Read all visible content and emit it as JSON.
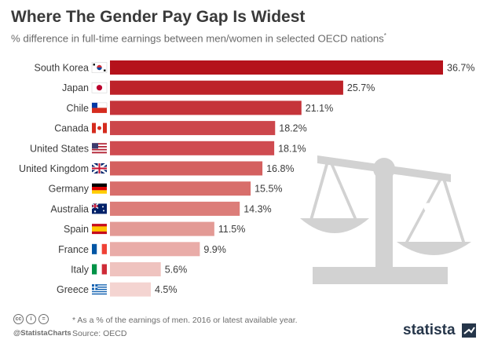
{
  "title": "Where The Gender Pay Gap Is Widest",
  "subtitle": "% difference in full-time earnings between men/women in selected OECD nations",
  "subtitle_mark": "*",
  "footnote": "* As a % of the earnings of men. 2016 or latest available year.",
  "source": "Source: OECD",
  "handle": "@StatistaCharts",
  "brand": "statista",
  "license_icons": [
    "cc-icon",
    "person-icon",
    "equals-icon"
  ],
  "colors": {
    "bars": [
      "#b5121b",
      "#bd2229",
      "#c5343a",
      "#cc464b",
      "#cf4b50",
      "#d4605f",
      "#d86e6b",
      "#dc7d79",
      "#e39a95",
      "#e9aca8",
      "#efc3bf",
      "#f4d4d1"
    ],
    "illustration": "#d2d2d2"
  },
  "chart_data": {
    "type": "bar",
    "orientation": "horizontal",
    "categories": [
      "South Korea",
      "Japan",
      "Chile",
      "Canada",
      "United States",
      "United Kingdom",
      "Germany",
      "Australia",
      "Spain",
      "France",
      "Italy",
      "Greece"
    ],
    "values": [
      36.7,
      25.7,
      21.1,
      18.2,
      18.1,
      16.8,
      15.5,
      14.3,
      11.5,
      9.9,
      5.6,
      4.5
    ],
    "value_labels": [
      "36.7%",
      "25.7%",
      "21.1%",
      "18.2%",
      "18.1%",
      "16.8%",
      "15.5%",
      "14.3%",
      "11.5%",
      "9.9%",
      "5.6%",
      "4.5%"
    ],
    "flag_icons": [
      "flag-south-korea-icon",
      "flag-japan-icon",
      "flag-chile-icon",
      "flag-canada-icon",
      "flag-united-states-icon",
      "flag-united-kingdom-icon",
      "flag-germany-icon",
      "flag-australia-icon",
      "flag-spain-icon",
      "flag-france-icon",
      "flag-italy-icon",
      "flag-greece-icon"
    ],
    "xlim": [
      0,
      36.7
    ],
    "grid": false,
    "title": "Where The Gender Pay Gap Is Widest",
    "subtitle": "% difference in full-time earnings between men/women in selected OECD nations"
  }
}
